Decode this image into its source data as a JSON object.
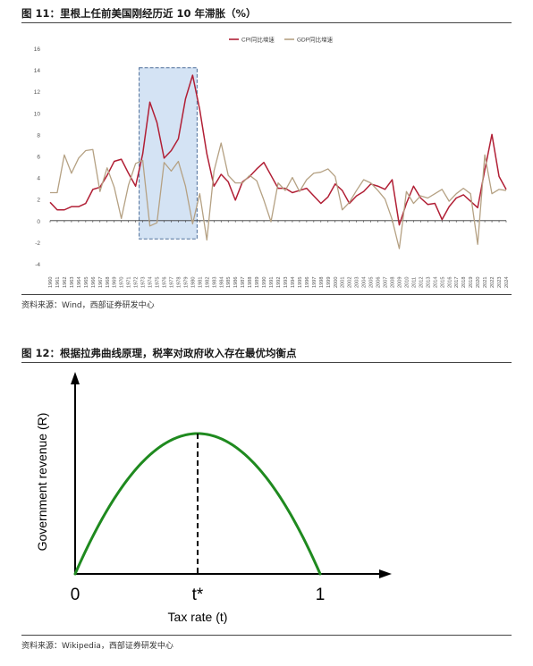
{
  "figure1": {
    "title": "图 11：里根上任前美国刚经历近 10 年滞胀（%）",
    "source": "资料来源：Wind，西部证券研发中心"
  },
  "figure2": {
    "title": "图 12：根据拉弗曲线原理，税率对政府收入存在最优均衡点",
    "source": "资料来源：Wikipedia，西部证券研发中心"
  },
  "chart_data": [
    {
      "type": "line",
      "title": "",
      "x": [
        1960,
        1961,
        1962,
        1963,
        1964,
        1965,
        1966,
        1967,
        1968,
        1969,
        1970,
        1971,
        1972,
        1973,
        1974,
        1975,
        1976,
        1977,
        1978,
        1979,
        1980,
        1981,
        1982,
        1983,
        1984,
        1985,
        1986,
        1987,
        1988,
        1989,
        1990,
        1991,
        1992,
        1993,
        1994,
        1995,
        1996,
        1997,
        1998,
        1999,
        2000,
        2001,
        2002,
        2003,
        2004,
        2005,
        2006,
        2007,
        2008,
        2009,
        2010,
        2011,
        2012,
        2013,
        2014,
        2015,
        2016,
        2017,
        2018,
        2019,
        2020,
        2021,
        2022,
        2023,
        2024
      ],
      "ylim": [
        -4,
        16
      ],
      "yticks": [
        -4,
        -2,
        0,
        2,
        4,
        6,
        8,
        10,
        12,
        14,
        16
      ],
      "series": [
        {
          "name": "CPI同比增速",
          "color": "#b11f35",
          "values": [
            1.7,
            1.0,
            1.0,
            1.3,
            1.3,
            1.6,
            2.9,
            3.1,
            4.2,
            5.5,
            5.7,
            4.4,
            3.2,
            6.2,
            11.0,
            9.1,
            5.8,
            6.5,
            7.6,
            11.3,
            13.5,
            10.3,
            6.2,
            3.2,
            4.3,
            3.6,
            1.9,
            3.6,
            4.1,
            4.8,
            5.4,
            4.2,
            3.0,
            3.0,
            2.6,
            2.8,
            3.0,
            2.3,
            1.6,
            2.2,
            3.4,
            2.8,
            1.6,
            2.3,
            2.7,
            3.4,
            3.2,
            2.9,
            3.8,
            -0.4,
            1.6,
            3.2,
            2.1,
            1.5,
            1.6,
            0.1,
            1.3,
            2.1,
            2.4,
            1.8,
            1.2,
            4.7,
            8.0,
            4.1,
            2.9
          ]
        },
        {
          "name": "GDP同比增速",
          "color": "#b5a183",
          "values": [
            2.6,
            2.6,
            6.1,
            4.4,
            5.8,
            6.5,
            6.6,
            2.7,
            4.9,
            3.1,
            0.2,
            3.3,
            5.3,
            5.6,
            -0.5,
            -0.2,
            5.4,
            4.6,
            5.5,
            3.2,
            -0.3,
            2.5,
            -1.8,
            4.6,
            7.2,
            4.2,
            3.5,
            3.5,
            4.2,
            3.7,
            1.9,
            -0.1,
            3.5,
            2.8,
            4.0,
            2.7,
            3.8,
            4.4,
            4.5,
            4.8,
            4.1,
            1.0,
            1.7,
            2.8,
            3.8,
            3.5,
            2.8,
            2.0,
            0.1,
            -2.6,
            2.7,
            1.6,
            2.3,
            2.1,
            2.5,
            2.9,
            1.8,
            2.5,
            3.0,
            2.5,
            -2.2,
            6.1,
            2.5,
            2.9,
            2.8
          ]
        }
      ],
      "highlight_range": [
        1973,
        1980
      ]
    },
    {
      "type": "line",
      "title": "",
      "xlabel": "Tax rate (t)",
      "ylabel": "Government revenue (R)",
      "xticks": [
        "0",
        "t*",
        "1"
      ],
      "series": [
        {
          "name": "",
          "color": "#1f8a1f",
          "function": "R = 4·t·(1−t)",
          "x": [
            0,
            0.5,
            1
          ],
          "y": [
            0,
            1,
            0
          ]
        }
      ]
    }
  ]
}
